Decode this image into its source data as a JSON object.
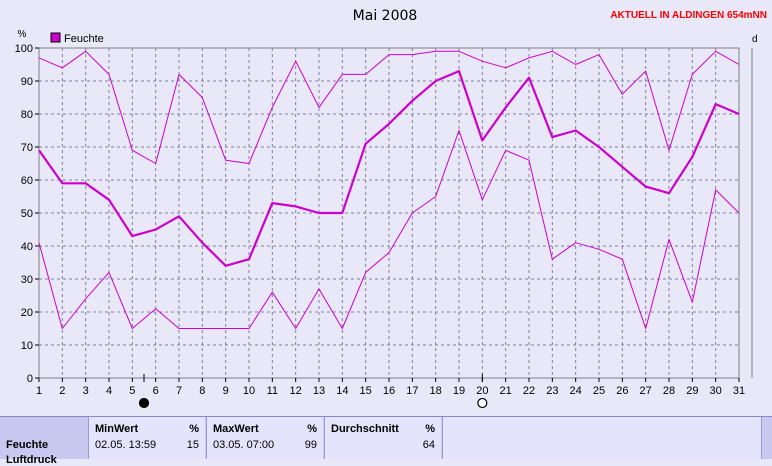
{
  "chart_data": {
    "type": "line",
    "title": "Mai 2008",
    "station": "AKTUELL IN ALDINGEN 654mNN",
    "y_unit": "%",
    "right_unit_partial": "d",
    "legend": "Feuchte",
    "series_color": "#cc00cc",
    "ylim": [
      0,
      100
    ],
    "y_ticks": [
      "0",
      "10",
      "20",
      "30",
      "40",
      "50",
      "60",
      "70",
      "80",
      "90",
      "100"
    ],
    "x": [
      "1",
      "2",
      "3",
      "4",
      "5",
      "6",
      "7",
      "8",
      "9",
      "10",
      "11",
      "12",
      "13",
      "14",
      "15",
      "16",
      "17",
      "18",
      "19",
      "20",
      "21",
      "22",
      "23",
      "24",
      "25",
      "26",
      "27",
      "28",
      "29",
      "30",
      "31"
    ],
    "series": [
      {
        "name": "Max",
        "values": [
          97,
          94,
          99,
          92,
          69,
          65,
          92,
          85,
          66,
          65,
          82,
          96,
          82,
          92,
          92,
          98,
          98,
          99,
          99,
          96,
          94,
          97,
          99,
          95,
          98,
          86,
          93,
          69,
          92,
          99,
          95
        ]
      },
      {
        "name": "Durchschnitt",
        "values": [
          69,
          59,
          59,
          54,
          43,
          45,
          49,
          41,
          34,
          36,
          53,
          52,
          50,
          50,
          71,
          77,
          84,
          90,
          93,
          72,
          82,
          91,
          73,
          75,
          70,
          64,
          58,
          56,
          67,
          83,
          80
        ]
      },
      {
        "name": "Min",
        "values": [
          41,
          15,
          24,
          32,
          15,
          21,
          15,
          15,
          15,
          15,
          26,
          15,
          27,
          15,
          32,
          38,
          50,
          55,
          75,
          54,
          69,
          66,
          36,
          41,
          39,
          36,
          15,
          42,
          23,
          57,
          50
        ]
      }
    ],
    "moon_markers": [
      {
        "day": 5.5,
        "phase": "new"
      },
      {
        "day": 20,
        "phase": "full"
      }
    ],
    "grid": true
  },
  "stats": {
    "row_label": "Feuchte",
    "row_label_2": "Luftdruck",
    "min": {
      "header": "MinWert",
      "unit": "%",
      "datetime": "02.05.  13:59",
      "value": "15"
    },
    "max": {
      "header": "MaxWert",
      "unit": "%",
      "datetime": "03.05.  07:00",
      "value": "99"
    },
    "avg": {
      "header": "Durchschnitt",
      "unit": "%",
      "value": "64"
    }
  }
}
